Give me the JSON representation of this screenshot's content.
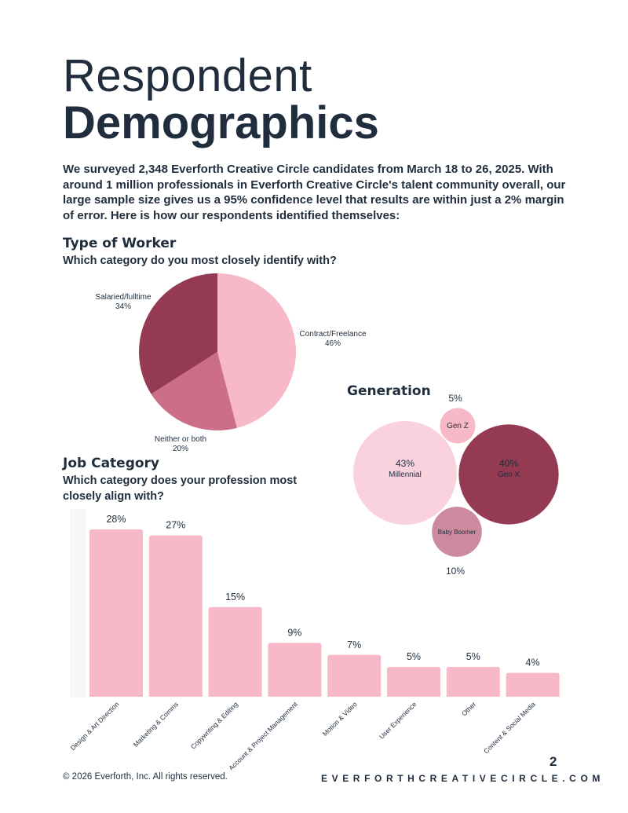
{
  "title": {
    "line1": "Respondent",
    "line2": "Demographics"
  },
  "intro": "We surveyed 2,348 Everforth Creative Circle candidates from March 18 to 26, 2025. With around 1 million professionals in Everforth Creative Circle's talent community overall, our large sample size gives us a 95% confidence level that results are within just a 2% margin of error. Here is how our respondents identified themselves:",
  "worker": {
    "title": "Type of Worker",
    "question": "Which category do you most closely identify with?"
  },
  "generation": {
    "title": "Generation"
  },
  "job": {
    "title": "Job Category",
    "question": "Which category does your profession most closely align with?"
  },
  "footer": {
    "copyright": "© 2026 Everforth, Inc. All rights reserved.",
    "page": "2",
    "site": "EVERFORTHCREATIVECIRCLE.COM"
  },
  "chart_data": [
    {
      "type": "pie",
      "categories": [
        "Contract/Freelance",
        "Neither or both",
        "Salaried/fulltime"
      ],
      "values": [
        46,
        20,
        34
      ],
      "labels": [
        "46%",
        "20%",
        "34%"
      ],
      "colors": [
        "#f7b8c8",
        "#cd6e88",
        "#943a52"
      ]
    },
    {
      "type": "bubble",
      "categories": [
        "Millennial",
        "Gen X",
        "Gen Z",
        "Baby Boomer"
      ],
      "values": [
        43,
        40,
        5,
        10
      ],
      "labels": [
        "43%",
        "40%",
        "5%",
        "10%"
      ],
      "colors": [
        "#fad2de",
        "#943a52",
        "#f7b8c8",
        "#cc8a9e"
      ]
    },
    {
      "type": "bar",
      "categories": [
        "Design & Art Direction",
        "Marketing & Comms",
        "Copywriting & Editing",
        "Account & Project Management",
        "Motion & Video",
        "User Experience",
        "Other",
        "Content & Social Media"
      ],
      "values": [
        28,
        27,
        15,
        9,
        7,
        5,
        5,
        4
      ],
      "labels": [
        "28%",
        "27%",
        "15%",
        "9%",
        "7%",
        "5%",
        "5%",
        "4%"
      ],
      "color": "#f7b8c8",
      "ylim": [
        0,
        30
      ]
    }
  ]
}
